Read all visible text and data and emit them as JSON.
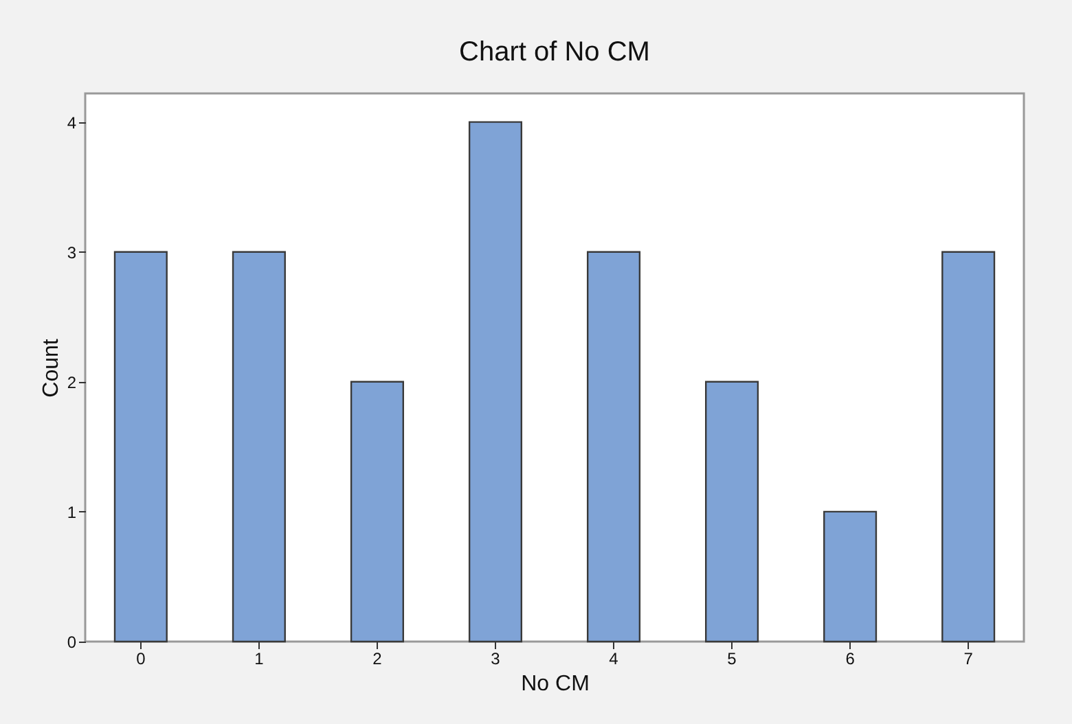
{
  "chart_data": {
    "type": "bar",
    "title": "Chart of No CM",
    "xlabel": "No CM",
    "ylabel": "Count",
    "categories": [
      "0",
      "1",
      "2",
      "3",
      "4",
      "5",
      "6",
      "7"
    ],
    "values": [
      3,
      3,
      2,
      4,
      3,
      2,
      1,
      3
    ],
    "color": "#7fa3d6",
    "ylim": [
      0,
      4.22
    ],
    "yticks": [
      0,
      1,
      2,
      3,
      4
    ],
    "grid": false
  }
}
